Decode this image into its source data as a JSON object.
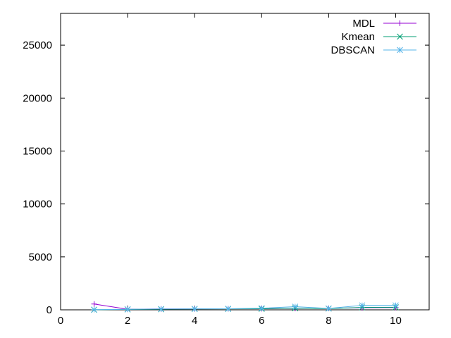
{
  "chart_data": {
    "type": "line",
    "title": "",
    "xlabel": "",
    "ylabel": "",
    "xlim": [
      0,
      11
    ],
    "ylim": [
      0,
      28000
    ],
    "xticks": [
      0,
      2,
      4,
      6,
      8,
      10
    ],
    "yticks": [
      0,
      5000,
      10000,
      15000,
      20000,
      25000
    ],
    "grid": false,
    "legend_position": "top-right",
    "series": [
      {
        "name": "MDL",
        "color": "#9400d3",
        "marker": "plus",
        "x": [
          1,
          2,
          3,
          4,
          5,
          6,
          7,
          8,
          9,
          10
        ],
        "y": [
          550,
          60,
          80,
          90,
          100,
          110,
          130,
          140,
          200,
          220
        ]
      },
      {
        "name": "Kmean",
        "color": "#009e73",
        "marker": "cross",
        "x": [
          1,
          2,
          3,
          4,
          5,
          6,
          7,
          8,
          9,
          10
        ],
        "y": [
          10,
          40,
          60,
          80,
          90,
          100,
          150,
          120,
          230,
          240
        ]
      },
      {
        "name": "DBSCAN",
        "color": "#56b4e9",
        "marker": "star",
        "x": [
          1,
          2,
          3,
          4,
          5,
          6,
          7,
          8,
          9,
          10
        ],
        "y": [
          20,
          50,
          80,
          90,
          100,
          150,
          300,
          130,
          420,
          420
        ]
      }
    ]
  }
}
